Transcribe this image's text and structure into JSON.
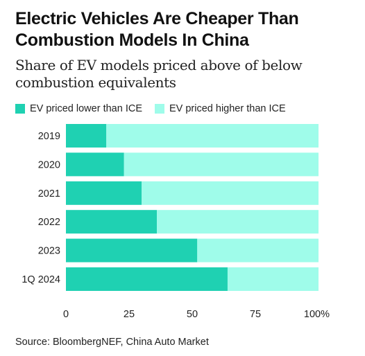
{
  "title": "Electric Vehicles Are Cheaper Than Combustion Models In China",
  "subtitle": "Share of EV models priced above of below combustion equivalents",
  "source": "Source: BloombergNEF, China Auto Market",
  "colors": {
    "lower": "#1fd1b2",
    "higher": "#9ffcea"
  },
  "chart_data": {
    "type": "bar",
    "orientation": "horizontal",
    "stacked": true,
    "categories": [
      "2019",
      "2020",
      "2021",
      "2022",
      "2023",
      "1Q 2024"
    ],
    "series": [
      {
        "name": "EV priced lower than ICE",
        "values": [
          16,
          23,
          30,
          36,
          52,
          64
        ]
      },
      {
        "name": "EV priced higher than ICE",
        "values": [
          84,
          77,
          70,
          64,
          48,
          36
        ]
      }
    ],
    "xlim": [
      0,
      100
    ],
    "xticks": [
      {
        "value": 0,
        "label": "0"
      },
      {
        "value": 25,
        "label": "25"
      },
      {
        "value": 50,
        "label": "50"
      },
      {
        "value": 75,
        "label": "75"
      },
      {
        "value": 100,
        "label": "100%"
      }
    ],
    "grid": false,
    "legend": "top-left"
  }
}
